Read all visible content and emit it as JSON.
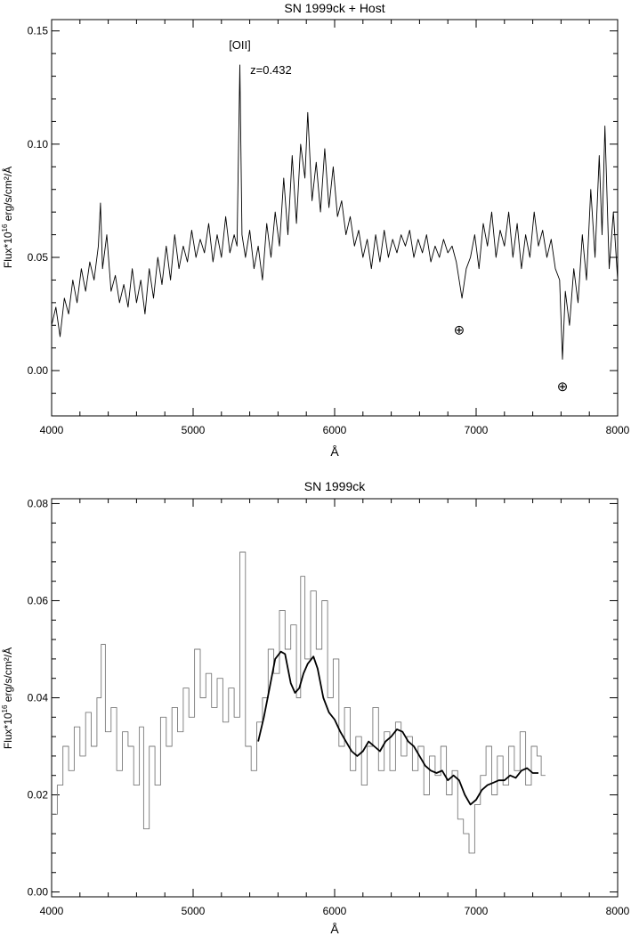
{
  "chart_data": [
    {
      "type": "line",
      "title": "SN 1999ck + Host",
      "xlabel": "Å",
      "ylabel": "Flux*10",
      "ylabel_sup": "16",
      "ylabel_unit": " erg/s/cm²/Å",
      "xlim": [
        4000,
        8000
      ],
      "ylim": [
        -0.02,
        0.155
      ],
      "x_ticks": [
        4000,
        5000,
        6000,
        7000,
        8000
      ],
      "y_ticks": [
        0.0,
        0.05,
        0.1,
        0.15
      ],
      "y_tick_labels": [
        "0.00",
        "0.05",
        "0.10",
        "0.15"
      ],
      "annotations": [
        {
          "text": "[OII]",
          "x": 5330,
          "y": 0.142
        },
        {
          "text": "z=0.432",
          "x": 5550,
          "y": 0.131
        },
        {
          "text": "⊕",
          "x": 6880,
          "y": 0.016
        },
        {
          "text": "⊕",
          "x": 7610,
          "y": -0.009
        }
      ],
      "series": [
        {
          "style": "solid",
          "x": [
            4000,
            4030,
            4060,
            4090,
            4120,
            4150,
            4180,
            4210,
            4240,
            4270,
            4300,
            4330,
            4345,
            4360,
            4390,
            4420,
            4450,
            4480,
            4510,
            4540,
            4570,
            4600,
            4630,
            4660,
            4690,
            4720,
            4750,
            4780,
            4810,
            4840,
            4870,
            4900,
            4930,
            4960,
            4990,
            5020,
            5050,
            5080,
            5110,
            5140,
            5170,
            5200,
            5230,
            5260,
            5290,
            5310,
            5330,
            5345,
            5370,
            5400,
            5430,
            5460,
            5490,
            5520,
            5550,
            5580,
            5610,
            5640,
            5670,
            5700,
            5730,
            5760,
            5790,
            5810,
            5840,
            5870,
            5900,
            5930,
            5960,
            5990,
            6020,
            6050,
            6080,
            6110,
            6140,
            6170,
            6200,
            6230,
            6260,
            6290,
            6320,
            6350,
            6380,
            6410,
            6440,
            6470,
            6500,
            6530,
            6560,
            6590,
            6620,
            6650,
            6680,
            6710,
            6740,
            6770,
            6800,
            6830,
            6860,
            6880,
            6900,
            6930,
            6960,
            6990,
            7020,
            7050,
            7080,
            7110,
            7140,
            7170,
            7200,
            7230,
            7260,
            7290,
            7320,
            7350,
            7380,
            7410,
            7440,
            7470,
            7500,
            7530,
            7560,
            7590,
            7610,
            7630,
            7660,
            7690,
            7720,
            7750,
            7780,
            7810,
            7840,
            7870,
            7890,
            7910,
            7940,
            7970,
            8000
          ],
          "y": [
            0.02,
            0.028,
            0.015,
            0.032,
            0.025,
            0.04,
            0.03,
            0.045,
            0.035,
            0.048,
            0.04,
            0.055,
            0.074,
            0.045,
            0.06,
            0.035,
            0.042,
            0.03,
            0.038,
            0.028,
            0.045,
            0.03,
            0.04,
            0.025,
            0.045,
            0.032,
            0.05,
            0.038,
            0.055,
            0.04,
            0.06,
            0.045,
            0.055,
            0.048,
            0.062,
            0.05,
            0.058,
            0.052,
            0.065,
            0.048,
            0.06,
            0.05,
            0.068,
            0.052,
            0.06,
            0.055,
            0.135,
            0.06,
            0.05,
            0.062,
            0.045,
            0.055,
            0.04,
            0.065,
            0.05,
            0.07,
            0.055,
            0.085,
            0.06,
            0.095,
            0.065,
            0.1,
            0.085,
            0.114,
            0.075,
            0.092,
            0.07,
            0.098,
            0.072,
            0.09,
            0.068,
            0.075,
            0.06,
            0.068,
            0.055,
            0.062,
            0.05,
            0.058,
            0.045,
            0.06,
            0.048,
            0.062,
            0.05,
            0.058,
            0.052,
            0.06,
            0.055,
            0.062,
            0.05,
            0.058,
            0.052,
            0.06,
            0.048,
            0.055,
            0.05,
            0.058,
            0.052,
            0.055,
            0.048,
            0.04,
            0.032,
            0.045,
            0.05,
            0.06,
            0.045,
            0.065,
            0.055,
            0.07,
            0.05,
            0.062,
            0.055,
            0.07,
            0.05,
            0.065,
            0.045,
            0.06,
            0.05,
            0.07,
            0.055,
            0.062,
            0.05,
            0.058,
            0.045,
            0.04,
            0.005,
            0.035,
            0.02,
            0.045,
            0.03,
            0.06,
            0.04,
            0.08,
            0.05,
            0.095,
            0.06,
            0.108,
            0.045,
            0.07,
            0.04
          ]
        }
      ]
    },
    {
      "type": "line",
      "title": "SN 1999ck",
      "xlabel": "Å",
      "ylabel": "Flux*10",
      "ylabel_sup": "16",
      "ylabel_unit": " erg/s/cm²/Å",
      "xlim": [
        4000,
        8000
      ],
      "ylim": [
        -0.001,
        0.081
      ],
      "x_ticks": [
        4000,
        5000,
        6000,
        7000,
        8000
      ],
      "y_ticks": [
        0.0,
        0.02,
        0.04,
        0.06,
        0.08
      ],
      "y_tick_labels": [
        "0.00",
        "0.02",
        "0.04",
        "0.06",
        "0.08"
      ],
      "annotations": [],
      "series": [
        {
          "style": "step",
          "color": "#7a7a7a",
          "x": [
            4000,
            4040,
            4080,
            4120,
            4160,
            4200,
            4240,
            4280,
            4320,
            4350,
            4380,
            4420,
            4460,
            4500,
            4540,
            4580,
            4620,
            4650,
            4690,
            4730,
            4770,
            4810,
            4850,
            4890,
            4930,
            4970,
            5010,
            5050,
            5090,
            5130,
            5170,
            5210,
            5250,
            5290,
            5330,
            5370,
            5410,
            5450,
            5490,
            5530,
            5570,
            5610,
            5650,
            5690,
            5730,
            5760,
            5790,
            5830,
            5870,
            5910,
            5950,
            5990,
            6030,
            6070,
            6110,
            6150,
            6190,
            6230,
            6270,
            6310,
            6350,
            6390,
            6430,
            6470,
            6510,
            6550,
            6590,
            6630,
            6670,
            6710,
            6750,
            6790,
            6830,
            6870,
            6910,
            6950,
            6990,
            7030,
            7070,
            7110,
            7150,
            7190,
            7230,
            7270,
            7310,
            7350,
            7390,
            7430,
            7460
          ],
          "y": [
            0.016,
            0.022,
            0.03,
            0.025,
            0.034,
            0.028,
            0.037,
            0.03,
            0.04,
            0.051,
            0.033,
            0.038,
            0.025,
            0.033,
            0.03,
            0.022,
            0.034,
            0.013,
            0.03,
            0.022,
            0.036,
            0.03,
            0.038,
            0.033,
            0.042,
            0.036,
            0.05,
            0.04,
            0.045,
            0.038,
            0.044,
            0.035,
            0.042,
            0.036,
            0.07,
            0.03,
            0.025,
            0.035,
            0.04,
            0.05,
            0.045,
            0.058,
            0.05,
            0.055,
            0.04,
            0.065,
            0.048,
            0.062,
            0.05,
            0.06,
            0.04,
            0.048,
            0.03,
            0.038,
            0.025,
            0.032,
            0.022,
            0.03,
            0.038,
            0.025,
            0.033,
            0.025,
            0.035,
            0.028,
            0.032,
            0.025,
            0.03,
            0.02,
            0.028,
            0.024,
            0.03,
            0.02,
            0.025,
            0.015,
            0.012,
            0.008,
            0.018,
            0.024,
            0.03,
            0.02,
            0.028,
            0.022,
            0.03,
            0.025,
            0.033,
            0.022,
            0.03,
            0.028,
            0.024
          ]
        },
        {
          "style": "smooth",
          "color": "#000000",
          "x": [
            5460,
            5500,
            5540,
            5580,
            5620,
            5650,
            5690,
            5720,
            5750,
            5780,
            5810,
            5850,
            5880,
            5920,
            5960,
            6000,
            6040,
            6080,
            6120,
            6160,
            6200,
            6240,
            6280,
            6320,
            6360,
            6400,
            6440,
            6480,
            6520,
            6560,
            6600,
            6640,
            6680,
            6720,
            6760,
            6800,
            6840,
            6880,
            6920,
            6960,
            7000,
            7040,
            7080,
            7120,
            7160,
            7200,
            7240,
            7280,
            7320,
            7360,
            7400,
            7440
          ],
          "y": [
            0.031,
            0.036,
            0.042,
            0.048,
            0.0495,
            0.049,
            0.043,
            0.041,
            0.042,
            0.045,
            0.047,
            0.0485,
            0.046,
            0.04,
            0.037,
            0.0355,
            0.033,
            0.031,
            0.029,
            0.028,
            0.029,
            0.031,
            0.03,
            0.029,
            0.031,
            0.032,
            0.0335,
            0.033,
            0.031,
            0.03,
            0.028,
            0.026,
            0.025,
            0.0245,
            0.025,
            0.023,
            0.024,
            0.023,
            0.02,
            0.018,
            0.019,
            0.021,
            0.022,
            0.0225,
            0.023,
            0.023,
            0.024,
            0.0235,
            0.025,
            0.0255,
            0.0245,
            0.0245
          ]
        }
      ]
    }
  ]
}
